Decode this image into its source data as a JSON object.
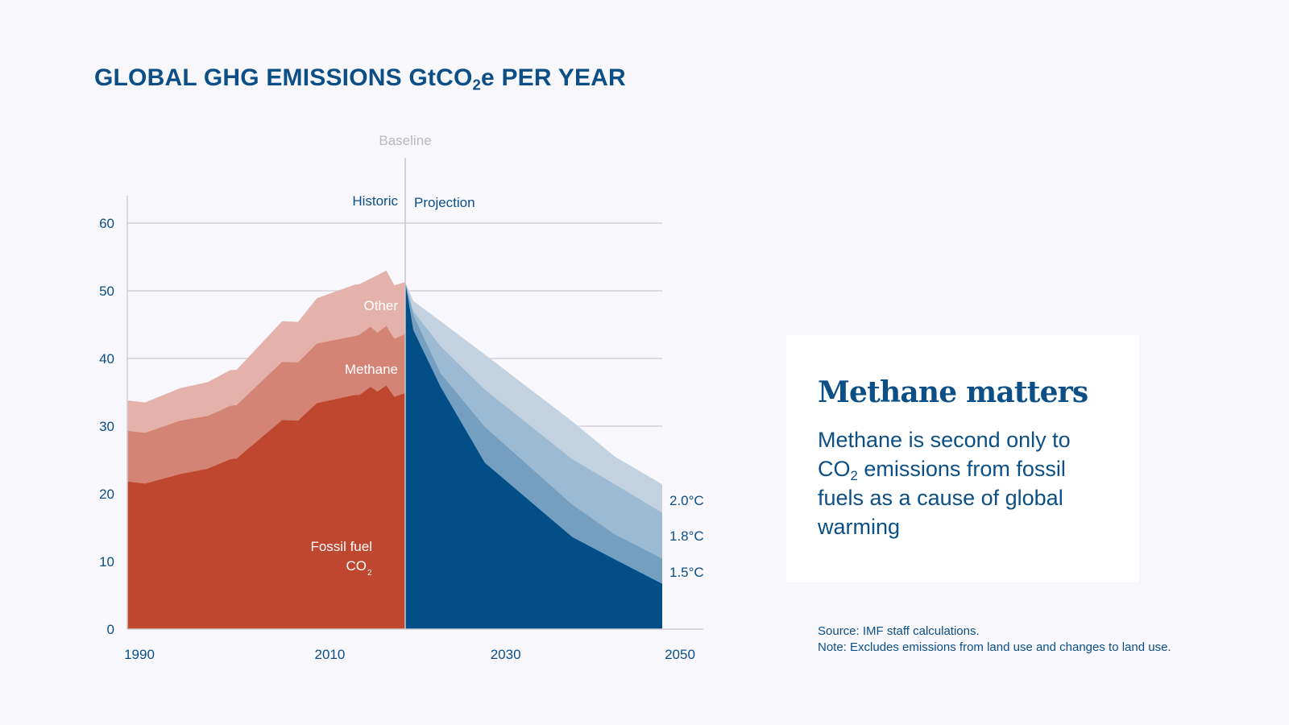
{
  "title": {
    "pre": "GLOBAL GHG EMISSIONS GtCO",
    "sub": "2",
    "post": "e PER YEAR"
  },
  "card": {
    "heading": "Methane matters",
    "body_pre": "Methane is second only to CO",
    "body_sub": "2",
    "body_post": " emissions from fossil fuels as a cause of global warming"
  },
  "notes": {
    "source": "Source: IMF staff calculations.",
    "note": "Note: Excludes emissions from land use and changes to land use."
  },
  "colors": {
    "text": "#0b4f86",
    "fossil_co2": "#c0472f",
    "methane": "#d48475",
    "other": "#e4b2aa",
    "proj_base": "#024f87",
    "proj_1_5": "#749fc1",
    "proj_1_8": "#9dbad3",
    "proj_2_0": "#c2d2e0",
    "background": "#f8f7fc",
    "baseline_label": "#b8b8bd"
  },
  "chart_data": {
    "type": "area",
    "title": "GLOBAL GHG EMISSIONS GtCO2e PER YEAR",
    "ylim": [
      0,
      60
    ],
    "yticks": [
      0,
      10,
      20,
      30,
      40,
      50,
      60
    ],
    "xticks": [
      1990,
      2010,
      2030,
      2050
    ],
    "grid": true,
    "baseline_year": 2018,
    "annotations": {
      "baseline": "Baseline",
      "historic": "Historic",
      "projection": "Projection"
    },
    "historic": {
      "x": [
        1990,
        1991.8,
        1995.3,
        1998.1,
        2000.4,
        2001,
        2005.6,
        2007.2,
        2009.1,
        2012.9,
        2013.4,
        2014.5,
        2015.2,
        2016.1,
        2016.9,
        2018
      ],
      "stacked_series": [
        {
          "name": "Fossil fuel CO2",
          "label_main": "Fossil fuel",
          "label_line2": "CO",
          "label_sub": "2",
          "top": [
            21.8,
            21.5,
            22.9,
            23.7,
            25.1,
            25.2,
            30.9,
            30.8,
            33.4,
            34.6,
            34.6,
            35.8,
            35.1,
            36.0,
            34.3,
            34.9
          ]
        },
        {
          "name": "Methane",
          "label_main": "Methane",
          "top": [
            29.3,
            29.0,
            30.8,
            31.5,
            33.0,
            33.1,
            39.5,
            39.4,
            42.2,
            43.3,
            43.5,
            44.7,
            43.8,
            44.8,
            42.9,
            43.6
          ]
        },
        {
          "name": "Other",
          "label_main": "Other",
          "top": [
            33.8,
            33.5,
            35.6,
            36.5,
            38.3,
            38.3,
            45.5,
            45.4,
            48.9,
            50.9,
            51.0,
            51.8,
            52.3,
            53.0,
            50.8,
            51.3
          ]
        }
      ]
    },
    "projection": {
      "x": [
        2018,
        2019,
        2022.4,
        2027.9,
        2038.8,
        2044.1,
        2050
      ],
      "bands": [
        {
          "name": "",
          "top": [
            51.3,
            44.2,
            35.8,
            24.6,
            13.6,
            10.3,
            6.7
          ]
        },
        {
          "name": "1.5°C",
          "top": [
            51.3,
            46.4,
            37.8,
            29.9,
            18.4,
            14.0,
            10.4
          ]
        },
        {
          "name": "1.8°C",
          "top": [
            51.3,
            47.0,
            41.8,
            35.4,
            25.1,
            21.4,
            17.2
          ]
        },
        {
          "name": "2.0°C",
          "top": [
            51.3,
            48.5,
            45.5,
            40.6,
            30.7,
            25.5,
            21.4
          ]
        }
      ]
    }
  }
}
